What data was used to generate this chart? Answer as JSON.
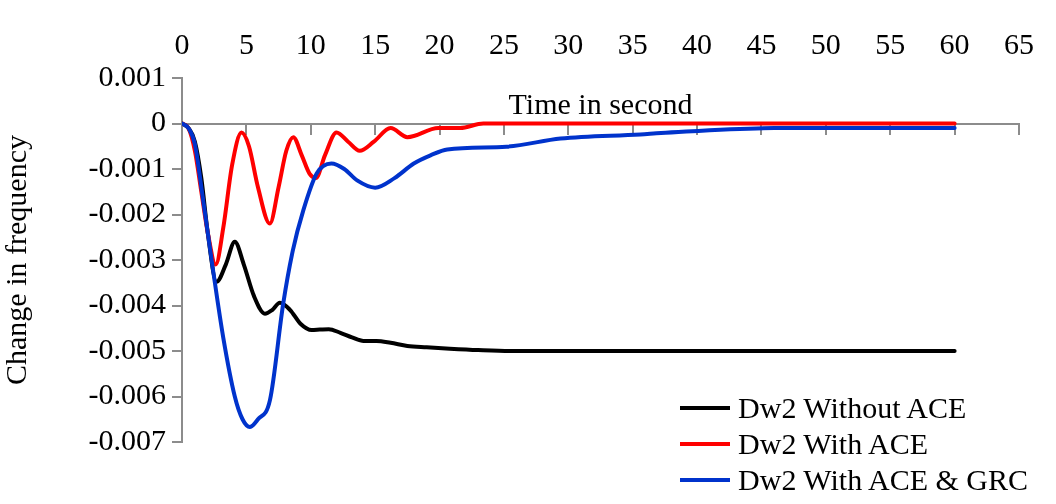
{
  "chart_data": {
    "type": "line",
    "xlabel": "Time in second",
    "ylabel": "Change in frequency",
    "xlim": [
      0,
      65
    ],
    "xticks": [
      0,
      5,
      10,
      15,
      20,
      25,
      30,
      35,
      40,
      45,
      50,
      55,
      60,
      65
    ],
    "ylim": [
      -0.007,
      0.001
    ],
    "yticks": [
      0.001,
      0,
      -0.001,
      -0.002,
      -0.003,
      -0.004,
      -0.005,
      -0.006,
      -0.007
    ],
    "grid": false,
    "legend": "bottom right",
    "marker": "none",
    "line_style": "solid",
    "series": [
      {
        "name": "Dw2 Without ACE",
        "color": "#000000",
        "x": [
          0,
          0.5,
          1,
          1.5,
          2,
          2.68,
          3.4,
          4.1,
          4.8,
          5.6,
          6.44,
          7,
          7.6,
          8.4,
          9.2,
          10.07,
          10.7,
          11.4,
          12.3,
          13.2,
          14.1,
          15.1,
          16.2,
          17.5,
          19,
          20.8,
          23,
          25.5,
          30,
          40,
          50,
          60
        ],
        "values": [
          0,
          -0.0001,
          -0.0004,
          -0.0012,
          -0.0024,
          -0.00348,
          -0.0031,
          -0.0026,
          -0.0031,
          -0.0038,
          -0.00418,
          -0.0041,
          -0.00394,
          -0.0041,
          -0.0044,
          -0.00454,
          -0.00453,
          -0.00452,
          -0.0046,
          -0.0047,
          -0.00478,
          -0.00478,
          -0.00482,
          -0.00489,
          -0.00492,
          -0.00495,
          -0.00498,
          -0.005,
          -0.005,
          -0.005,
          -0.005,
          -0.005
        ]
      },
      {
        "name": "Dw2 With ACE",
        "color": "#ff0000",
        "x": [
          0,
          0.5,
          1,
          1.5,
          2,
          2.62,
          3.2,
          3.9,
          4.62,
          5.2,
          5.9,
          6.82,
          7.5,
          8.1,
          8.64,
          9.3,
          9.9,
          10.4,
          11.1,
          12,
          12.9,
          13.8,
          14.9,
          16.2,
          17.5,
          19.9,
          21.6,
          23.4,
          30,
          40,
          50,
          58,
          60
        ],
        "values": [
          0,
          -0.0001,
          -0.0006,
          -0.0015,
          -0.0024,
          -0.0031,
          -0.0023,
          -0.0009,
          -0.0002,
          -0.0005,
          -0.0014,
          -0.0022,
          -0.0014,
          -0.0006,
          -0.0003,
          -0.0007,
          -0.0011,
          -0.0012,
          -0.0007,
          -0.0002,
          -0.0004,
          -0.0006,
          -0.0004,
          -0.0001,
          -0.0003,
          -0.0001,
          -0.0001,
          0,
          0,
          0,
          0,
          0,
          0
        ]
      },
      {
        "name": "Dw2 With ACE & GRC",
        "color": "#0033cc",
        "x": [
          0,
          0.5,
          0.99,
          1.6,
          2.41,
          3.2,
          4.1,
          4.7,
          5.27,
          5.9,
          6.83,
          7.86,
          8.6,
          9.42,
          10.46,
          11.6,
          12.6,
          13.6,
          15,
          16.5,
          18,
          19.3,
          20.6,
          25.2,
          29.4,
          35.6,
          37.2,
          46,
          60
        ],
        "values": [
          0,
          -0.0001,
          -0.00044,
          -0.0016,
          -0.00322,
          -0.0047,
          -0.006,
          -0.0065,
          -0.00667,
          -0.0065,
          -0.00608,
          -0.00396,
          -0.0028,
          -0.00191,
          -0.0011,
          -0.00088,
          -0.001,
          -0.00125,
          -0.00141,
          -0.0012,
          -0.00088,
          -0.0007,
          -0.00057,
          -0.00051,
          -0.00033,
          -0.00024,
          -0.00021,
          -0.0001,
          -0.0001
        ]
      }
    ]
  }
}
